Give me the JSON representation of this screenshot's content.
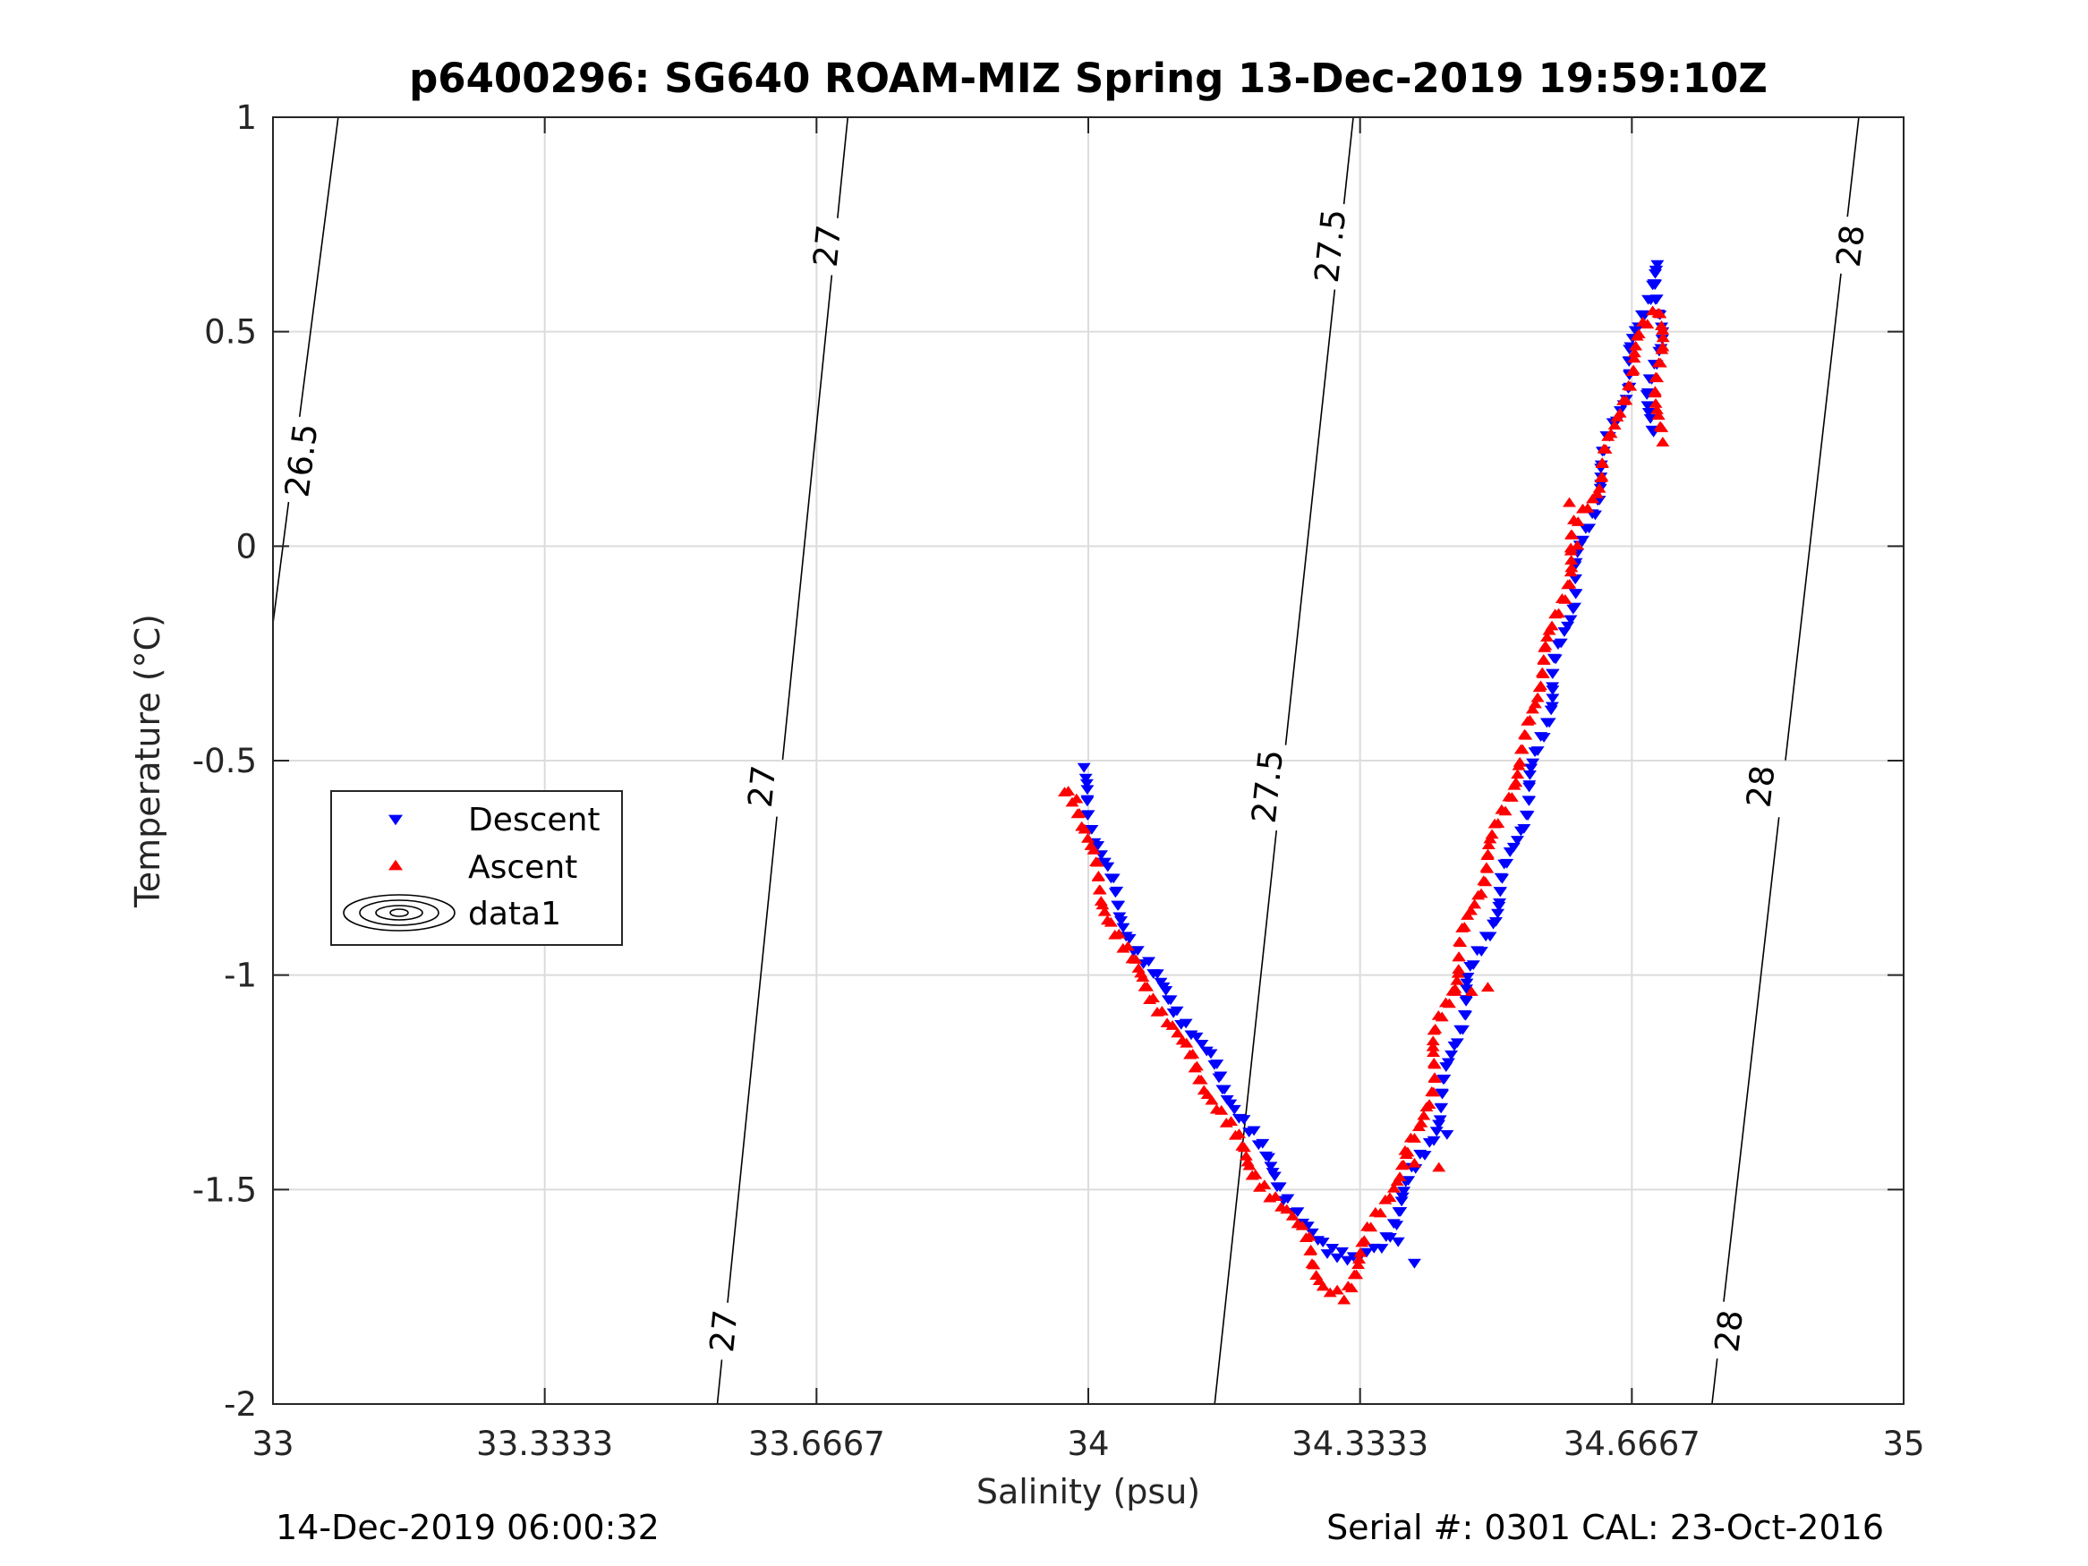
{
  "chart_data": {
    "type": "scatter",
    "title": "p6400296: SG640 ROAM-MIZ Spring 13-Dec-2019 19:59:10Z",
    "xlabel": "Salinity (psu)",
    "ylabel": "Temperature (°C)",
    "xlim": [
      33,
      35
    ],
    "ylim": [
      -2,
      1
    ],
    "x_ticks": [
      "33",
      "33.3333",
      "33.6667",
      "34",
      "34.3333",
      "34.6667",
      "35"
    ],
    "y_ticks": [
      "-2",
      "-1.5",
      "-1",
      "-0.5",
      "0",
      "0.5",
      "1"
    ],
    "grid": true,
    "legend_position": "left",
    "legend": [
      "Descent",
      "Ascent",
      "data1"
    ],
    "footer_left": "14-Dec-2019 06:00:32",
    "footer_right": "Serial #: 0301  CAL: 23-Oct-2016",
    "colors": {
      "descent": "#0000ff",
      "ascent": "#ff0000",
      "contour": "#000000",
      "grid": "#dcdcdc"
    },
    "contours": [
      {
        "level": "26.5",
        "points": [
          [
            33.0,
            -0.18
          ],
          [
            33.08,
            1.0
          ]
        ],
        "labels": [
          {
            "s": 33.035,
            "t": 0.2
          }
        ]
      },
      {
        "level": "27",
        "points": [
          [
            33.545,
            -2.0
          ],
          [
            33.705,
            1.0
          ]
        ],
        "labels": [
          {
            "s": 33.553,
            "t": -1.83
          },
          {
            "s": 33.6,
            "t": -0.56
          },
          {
            "s": 33.68,
            "t": 0.7
          }
        ]
      },
      {
        "level": "27.5",
        "points": [
          [
            34.155,
            -2.0
          ],
          [
            34.325,
            1.0
          ]
        ],
        "labels": [
          {
            "s": 34.22,
            "t": -0.56
          },
          {
            "s": 34.297,
            "t": 0.7
          }
        ]
      },
      {
        "level": "28",
        "points": [
          [
            34.765,
            -2.0
          ],
          [
            34.945,
            1.0
          ]
        ],
        "labels": [
          {
            "s": 34.786,
            "t": -1.83
          },
          {
            "s": 34.825,
            "t": -0.56
          },
          {
            "s": 34.935,
            "t": 0.7
          }
        ]
      }
    ],
    "series": [
      {
        "name": "Descent",
        "marker": "triangle-down",
        "path": [
          [
            33.99,
            -0.52
          ],
          [
            34.0,
            -0.6
          ],
          [
            34.02,
            -0.75
          ],
          [
            34.06,
            -0.95
          ],
          [
            34.1,
            -1.05
          ],
          [
            34.15,
            -1.2
          ],
          [
            34.2,
            -1.37
          ],
          [
            34.24,
            -1.5
          ],
          [
            34.27,
            -1.6
          ],
          [
            34.29,
            -1.64
          ],
          [
            34.33,
            -1.66
          ],
          [
            34.36,
            -1.63
          ],
          [
            34.39,
            -1.5
          ],
          [
            34.42,
            -1.38
          ],
          [
            34.44,
            -1.25
          ],
          [
            34.45,
            -1.15
          ],
          [
            34.47,
            -1.0
          ],
          [
            34.49,
            -0.9
          ],
          [
            34.51,
            -0.78
          ],
          [
            34.53,
            -0.65
          ],
          [
            34.55,
            -0.5
          ],
          [
            34.57,
            -0.32
          ],
          [
            34.59,
            -0.15
          ],
          [
            34.6,
            -0.05
          ],
          [
            34.61,
            0.02
          ],
          [
            34.62,
            0.1
          ],
          [
            34.63,
            0.18
          ],
          [
            34.64,
            0.25
          ],
          [
            34.66,
            0.38
          ],
          [
            34.67,
            0.47
          ],
          [
            34.68,
            0.55
          ],
          [
            34.69,
            0.62
          ],
          [
            34.7,
            0.66
          ],
          [
            34.7,
            0.62
          ],
          [
            34.7,
            0.5
          ],
          [
            34.69,
            0.35
          ],
          [
            34.69,
            0.26
          ]
        ],
        "extra": [
          [
            34.44,
            -1.37
          ],
          [
            34.4,
            -1.67
          ],
          [
            34.38,
            -1.62
          ]
        ]
      },
      {
        "name": "Ascent",
        "marker": "triangle-up",
        "path": [
          [
            33.97,
            -0.57
          ],
          [
            33.99,
            -0.6
          ],
          [
            34.01,
            -0.78
          ],
          [
            34.04,
            -0.93
          ],
          [
            34.08,
            -1.05
          ],
          [
            34.12,
            -1.18
          ],
          [
            34.16,
            -1.31
          ],
          [
            34.2,
            -1.45
          ],
          [
            34.24,
            -1.55
          ],
          [
            34.27,
            -1.62
          ],
          [
            34.29,
            -1.73
          ],
          [
            34.31,
            -1.75
          ],
          [
            34.33,
            -1.68
          ],
          [
            34.35,
            -1.58
          ],
          [
            34.37,
            -1.5
          ],
          [
            34.39,
            -1.42
          ],
          [
            34.41,
            -1.36
          ],
          [
            34.42,
            -1.25
          ],
          [
            34.43,
            -1.12
          ],
          [
            34.45,
            -1.0
          ],
          [
            34.47,
            -0.85
          ],
          [
            34.49,
            -0.73
          ],
          [
            34.5,
            -0.67
          ],
          [
            34.52,
            -0.55
          ],
          [
            34.54,
            -0.45
          ],
          [
            34.55,
            -0.32
          ],
          [
            34.57,
            -0.2
          ],
          [
            34.59,
            -0.05
          ],
          [
            34.6,
            0.05
          ],
          [
            34.62,
            0.12
          ],
          [
            34.63,
            0.2
          ],
          [
            34.65,
            0.28
          ],
          [
            34.66,
            0.38
          ],
          [
            34.67,
            0.45
          ],
          [
            34.68,
            0.5
          ],
          [
            34.7,
            0.55
          ],
          [
            34.7,
            0.45
          ],
          [
            34.7,
            0.35
          ],
          [
            34.7,
            0.25
          ]
        ],
        "extra": [
          [
            34.45,
            -1.04
          ],
          [
            34.47,
            -1.04
          ],
          [
            34.49,
            -1.03
          ],
          [
            34.39,
            -1.42
          ],
          [
            34.4,
            -1.44
          ],
          [
            34.6,
            0.0
          ],
          [
            34.59,
            0.1
          ],
          [
            34.43,
            -1.45
          ]
        ]
      }
    ]
  }
}
